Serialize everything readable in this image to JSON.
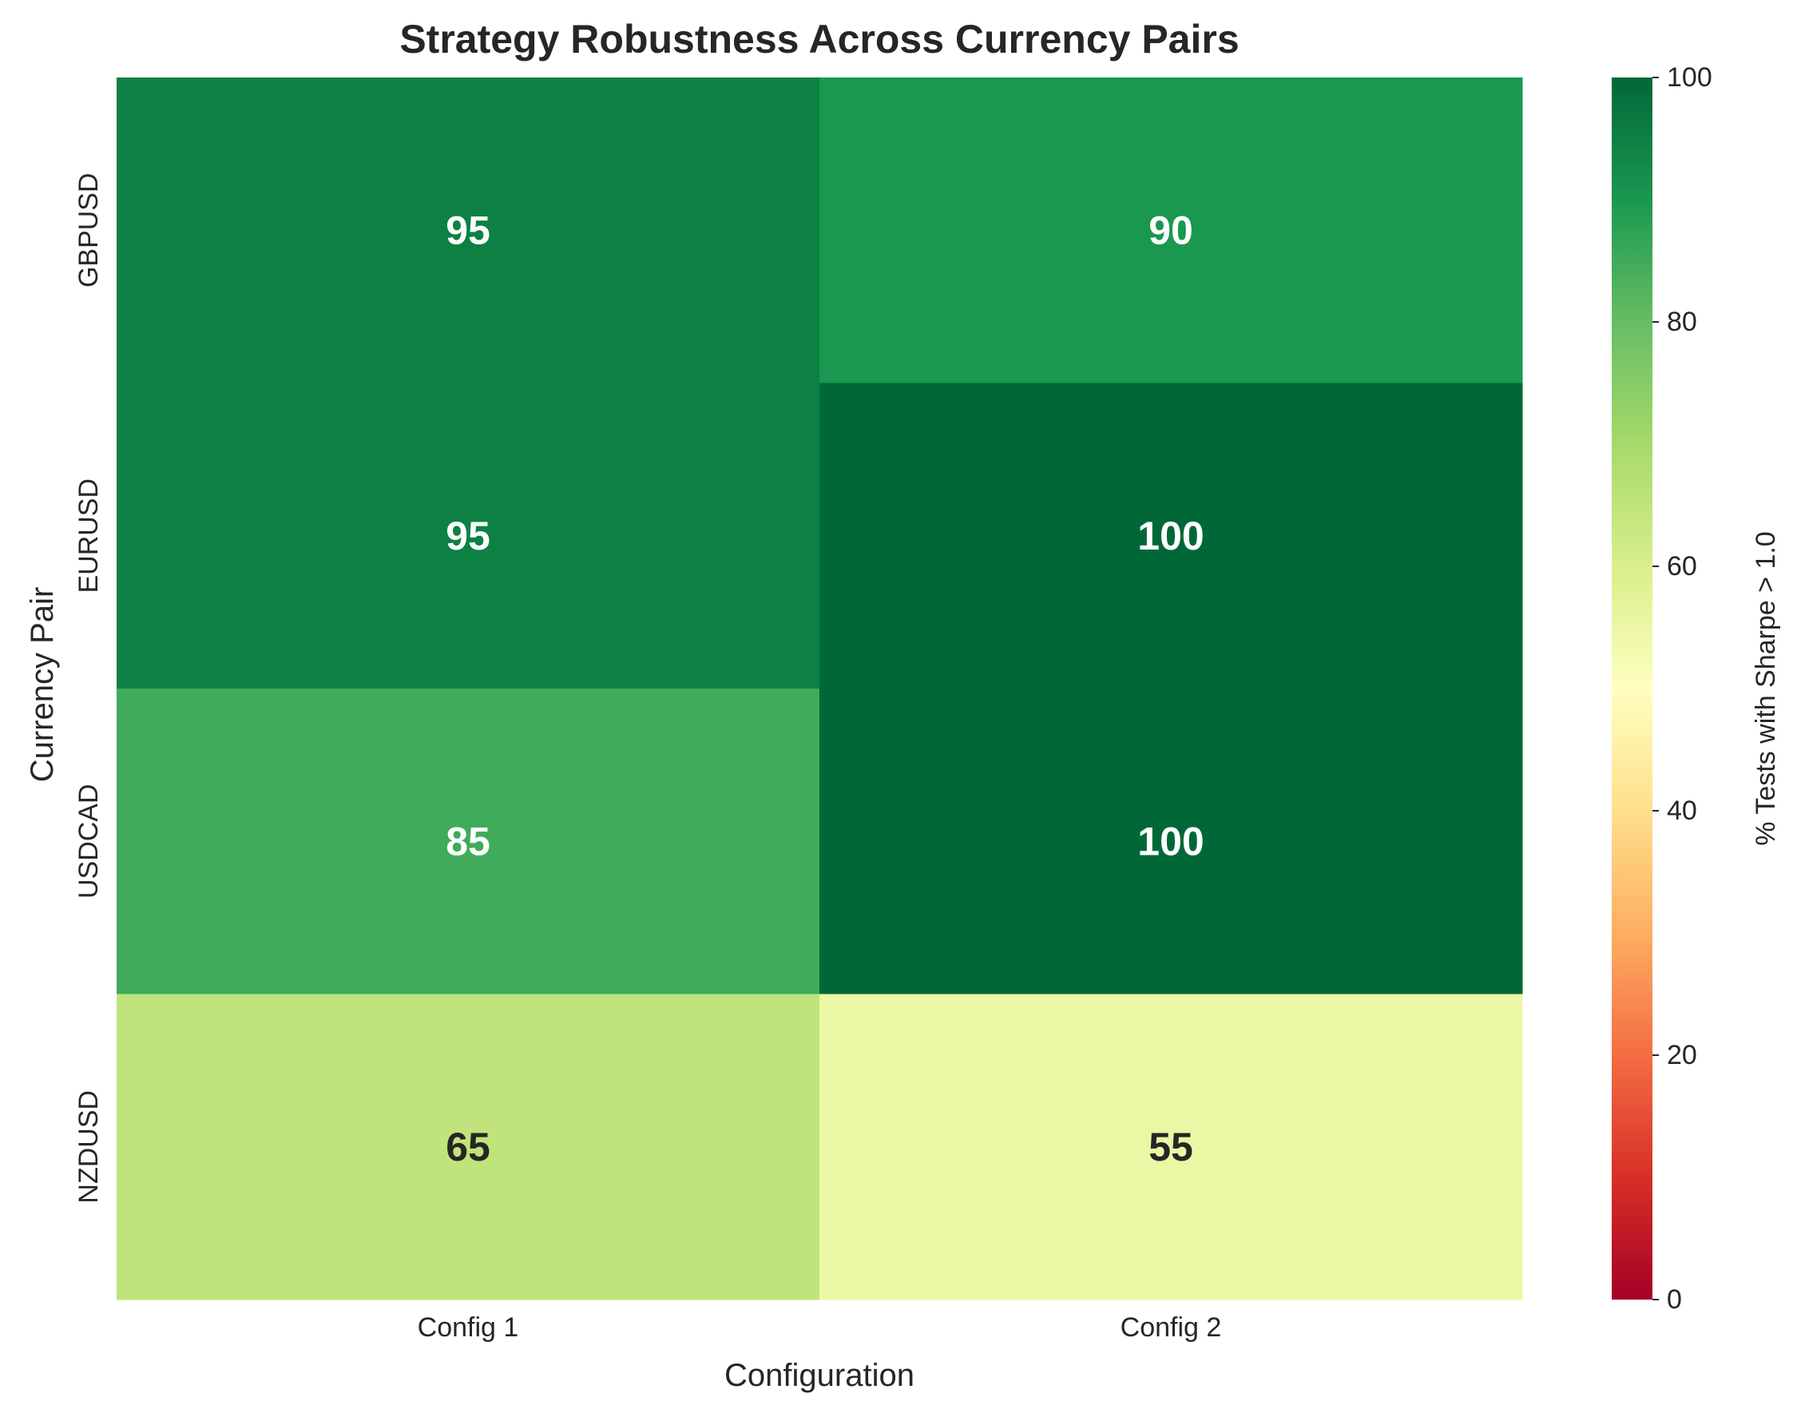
{
  "chart_data": {
    "type": "heatmap",
    "title": "Strategy Robustness Across Currency Pairs",
    "xlabel": "Configuration",
    "ylabel": "Currency Pair",
    "columns": [
      "Config 1",
      "Config 2"
    ],
    "rows": [
      "GBPUSD",
      "EURUSD",
      "USDCAD",
      "NZDUSD"
    ],
    "values": [
      [
        95,
        90
      ],
      [
        95,
        100
      ],
      [
        85,
        100
      ],
      [
        65,
        55
      ]
    ],
    "value_labels": [
      [
        "95",
        "90"
      ],
      [
        "95",
        "100"
      ],
      [
        "85",
        "100"
      ],
      [
        "65",
        "55"
      ]
    ],
    "colorbar": {
      "label": "% Tests with Sharpe > 1.0",
      "range": [
        0,
        100
      ],
      "ticks": [
        0,
        20,
        40,
        60,
        80,
        100
      ],
      "tick_labels": [
        "0",
        "20",
        "40",
        "60",
        "80",
        "100"
      ],
      "colormap": "RdYlGn"
    },
    "grid": false,
    "annotation_colors": {
      "light": "#ffffff",
      "dark": "#262626"
    }
  }
}
